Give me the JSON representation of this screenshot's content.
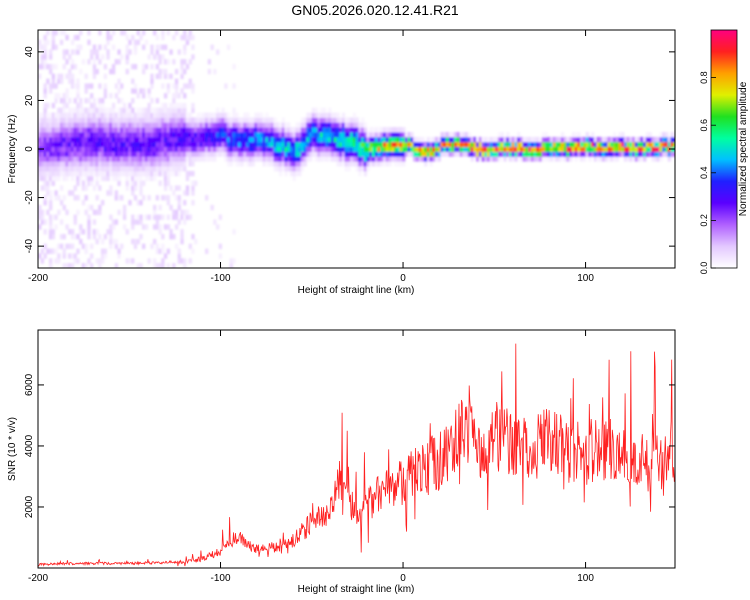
{
  "figure": {
    "title": "GN05.2026.020.12.41.R21"
  },
  "chart_data": [
    {
      "type": "heatmap",
      "xlabel": "Height of straight line (km)",
      "ylabel": "Frequency (Hz)",
      "xlim": [
        -200,
        149
      ],
      "ylim": [
        -49,
        49
      ],
      "xticks": [
        -200,
        -100,
        0,
        100
      ],
      "yticks": [
        -40,
        -20,
        0,
        20,
        40
      ],
      "colorbar": {
        "label": "Normalized spectral amplitude",
        "range": [
          0,
          1
        ],
        "ticks": [
          0.0,
          0.2,
          0.4,
          0.6,
          0.8
        ],
        "tick_labels": [
          "0.0",
          "0.2",
          "0.4",
          "0.6",
          "0.8"
        ],
        "colors": [
          "#ffffff",
          "#e3c8ff",
          "#b060ff",
          "#5a00ff",
          "#2020ff",
          "#00c0ff",
          "#00ffa0",
          "#20e020",
          "#e0f000",
          "#ffa000",
          "#ff2020",
          "#ff0080"
        ]
      },
      "ridge": {
        "x": [
          -200,
          -175,
          -150,
          -125,
          -110,
          -100,
          -90,
          -80,
          -70,
          -60,
          -50,
          -40,
          -30,
          -20,
          -10,
          0,
          10,
          20,
          30,
          40,
          50,
          60,
          70,
          80,
          90,
          100,
          110,
          120,
          130,
          140,
          149
        ],
        "frequency": [
          1,
          3,
          2,
          4,
          5,
          6,
          3,
          4,
          2,
          -1,
          6,
          5,
          3,
          0,
          1,
          2,
          -1,
          1,
          2,
          0,
          0,
          1,
          -1,
          1,
          0,
          1,
          0,
          1,
          0,
          1,
          1
        ],
        "amplitude": [
          0.25,
          0.3,
          0.3,
          0.3,
          0.35,
          0.4,
          0.45,
          0.45,
          0.5,
          0.55,
          0.5,
          0.55,
          0.6,
          0.7,
          0.85,
          0.85,
          0.9,
          0.9,
          0.9,
          0.9,
          0.9,
          0.95,
          0.9,
          0.9,
          0.9,
          0.95,
          0.9,
          0.95,
          0.95,
          0.95,
          0.95
        ]
      }
    },
    {
      "type": "line",
      "xlabel": "Height of straight line (km)",
      "ylabel": "SNR (10 * v/v)",
      "xlim": [
        -200,
        149
      ],
      "ylim": [
        0,
        7800
      ],
      "xticks": [
        -200,
        -100,
        0,
        100
      ],
      "yticks": [
        2000,
        4000,
        6000
      ],
      "color": "#ff2020",
      "series": [
        {
          "x": [
            -200,
            -180,
            -160,
            -140,
            -120,
            -110,
            -100,
            -95,
            -90,
            -80,
            -70,
            -60,
            -50,
            -40,
            -35,
            -30,
            -20,
            -10,
            0,
            10,
            20,
            30,
            35,
            40,
            50,
            60,
            70,
            80,
            90,
            100,
            110,
            120,
            130,
            140,
            149
          ],
          "values": [
            120,
            150,
            150,
            160,
            200,
            300,
            550,
            900,
            1000,
            600,
            700,
            900,
            1500,
            2000,
            2800,
            2200,
            2000,
            2600,
            2800,
            3300,
            3500,
            4200,
            4600,
            3900,
            4300,
            4100,
            3900,
            4200,
            3700,
            3900,
            3800,
            3600,
            3700,
            3500,
            3700
          ]
        }
      ]
    }
  ]
}
